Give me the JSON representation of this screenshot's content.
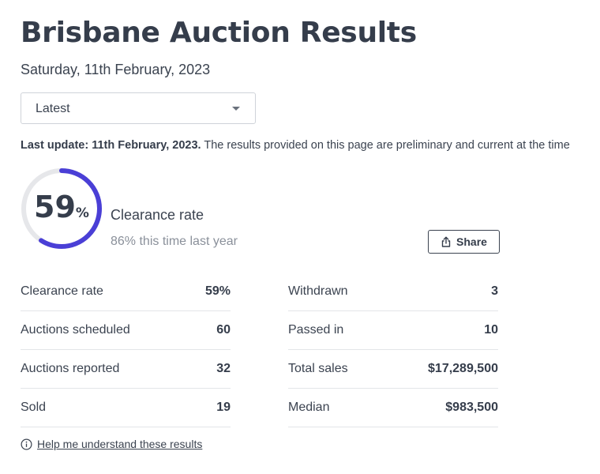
{
  "header": {
    "title": "Brisbane Auction Results",
    "date": "Saturday, 11th February, 2023"
  },
  "filter": {
    "selected": "Latest"
  },
  "update": {
    "label": "Last update: 11th February, 2023.",
    "text": " The results provided on this page are preliminary and current at the time"
  },
  "summary": {
    "clearance_value": "59",
    "clearance_percent_sign": "%",
    "clearance_fraction": 0.59,
    "clearance_label": "Clearance rate",
    "last_year": "86% this time last year",
    "ring_color": "#4a3fd6",
    "track_color": "#e6e7ea"
  },
  "share": {
    "label": "Share",
    "icon": "share-icon"
  },
  "stats_left": [
    {
      "label": "Clearance rate",
      "value": "59%"
    },
    {
      "label": "Auctions scheduled",
      "value": "60"
    },
    {
      "label": "Auctions reported",
      "value": "32"
    },
    {
      "label": "Sold",
      "value": "19"
    }
  ],
  "stats_right": [
    {
      "label": "Withdrawn",
      "value": "3"
    },
    {
      "label": "Passed in",
      "value": "10"
    },
    {
      "label": "Total sales",
      "value": "$17,289,500"
    },
    {
      "label": "Median",
      "value": "$983,500"
    }
  ],
  "help": {
    "label": "Help me understand these results",
    "icon": "info-icon"
  }
}
